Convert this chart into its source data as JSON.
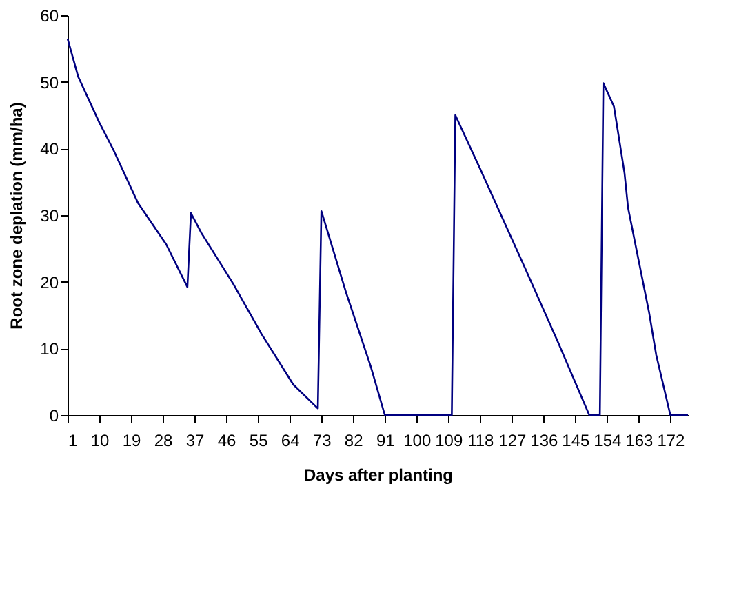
{
  "chart_data": {
    "type": "line",
    "xlabel": "Days after planting",
    "ylabel": "Root zone deplation (mm/ha)",
    "xlim": [
      1,
      177
    ],
    "xticks": [
      1,
      10,
      19,
      28,
      37,
      46,
      55,
      64,
      73,
      82,
      91,
      100,
      109,
      118,
      127,
      136,
      145,
      154,
      163,
      172
    ],
    "ylim": [
      0,
      60
    ],
    "yticks": [
      0,
      10,
      20,
      30,
      40,
      50,
      60
    ],
    "grid": false,
    "legend": false,
    "marker": "none",
    "line_style": "solid",
    "series": [
      {
        "color": "#000080",
        "x": [
          1,
          4,
          10,
          14,
          21,
          29,
          35,
          36,
          39,
          48,
          56,
          65,
          72,
          73,
          80,
          87,
          91,
          110,
          111,
          118,
          131,
          140,
          149,
          152,
          153,
          156,
          159,
          160,
          166,
          168,
          172,
          177
        ],
        "values": [
          56.5,
          50.8,
          43.9,
          39.8,
          31.8,
          25.6,
          19.2,
          30.3,
          27.3,
          19.7,
          12.2,
          4.6,
          1.0,
          30.6,
          18.4,
          7.3,
          0,
          0,
          45.0,
          37.0,
          21.8,
          11.1,
          0,
          0,
          49.8,
          46.3,
          36.3,
          31.1,
          15.3,
          9.0,
          0,
          0
        ]
      }
    ]
  }
}
